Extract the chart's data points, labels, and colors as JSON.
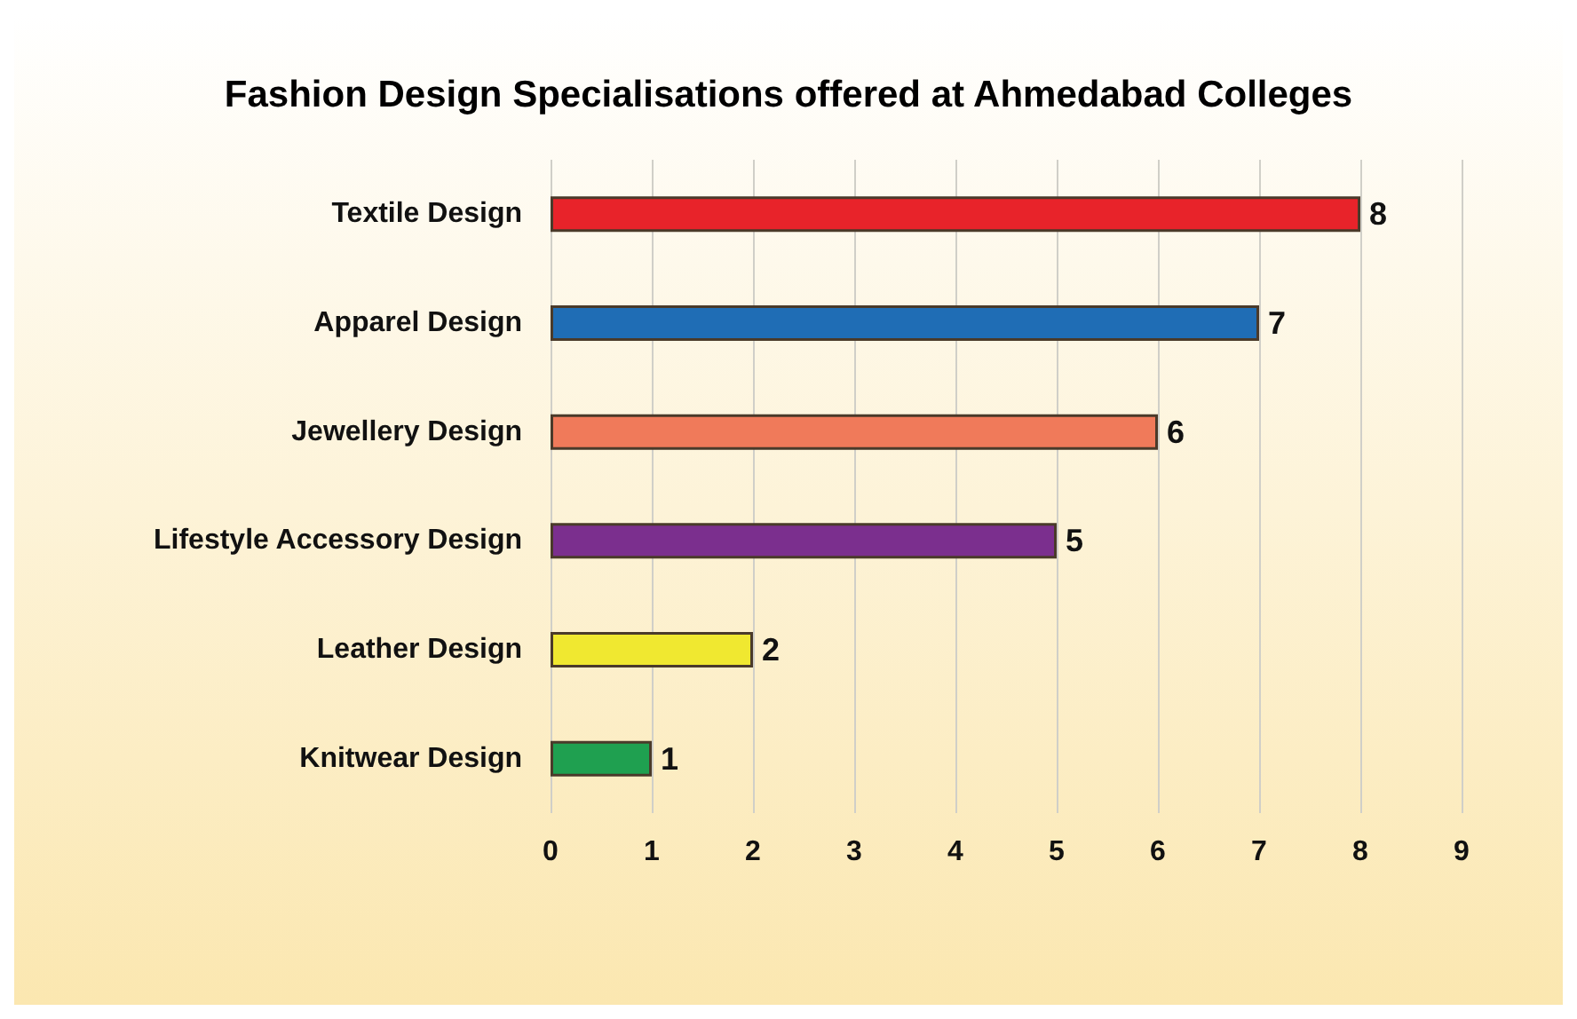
{
  "chart_data": {
    "type": "bar",
    "orientation": "horizontal",
    "title": "Fashion Design Specialisations offered at Ahmedabad Colleges",
    "categories": [
      "Textile Design",
      "Apparel Design",
      "Jewellery Design",
      "Lifestyle Accessory Design",
      "Leather Design",
      "Knitwear Design"
    ],
    "values": [
      8,
      7,
      6,
      5,
      2,
      1
    ],
    "colors": [
      "#e8232a",
      "#1f6db5",
      "#f07a5a",
      "#7b2f8e",
      "#f0e830",
      "#1fa050"
    ],
    "xlim": [
      0,
      9
    ],
    "xticks": [
      0,
      1,
      2,
      3,
      4,
      5,
      6,
      7,
      8,
      9
    ],
    "grid": "x",
    "data_labels": true
  }
}
